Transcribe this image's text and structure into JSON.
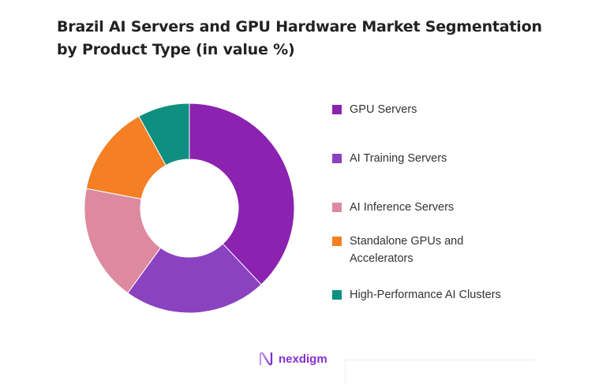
{
  "chart_data": {
    "type": "pie",
    "donut": true,
    "title": "Brazil AI Servers and GPU Hardware Market Segmentation by Product Type (in value %)",
    "categories": [
      "GPU Servers",
      "AI Training Servers",
      "AI Inference Servers",
      "Standalone GPUs and Accelerators",
      "High-Performance AI Clusters"
    ],
    "values": [
      38,
      22,
      18,
      14,
      8
    ],
    "colors": [
      "#8B22B0",
      "#8A42C0",
      "#DD89A0",
      "#F47F24",
      "#0E8F80"
    ],
    "legend_position": "right"
  },
  "logo": {
    "text": "nexdigm"
  }
}
